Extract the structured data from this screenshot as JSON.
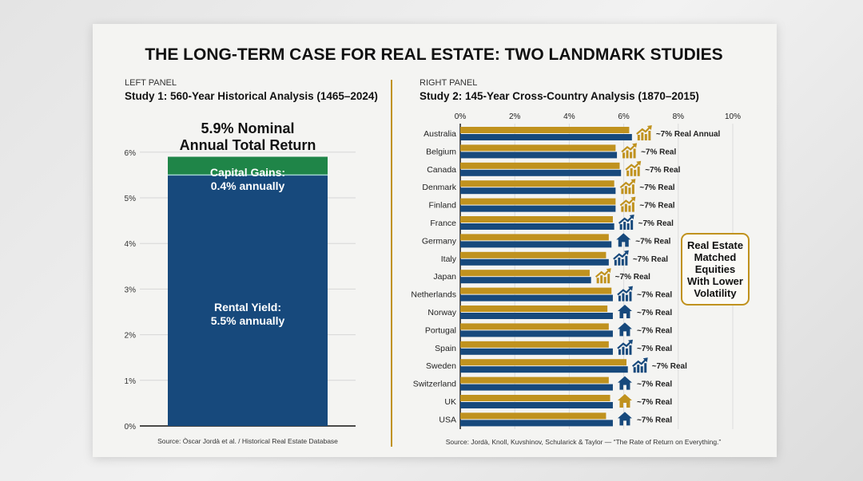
{
  "title": "THE LONG-TERM CASE FOR REAL ESTATE: TWO LANDMARK STUDIES",
  "colors": {
    "gold": "#c0921e",
    "blue": "#17497c",
    "green": "#1f8548",
    "card": "#f4f4f2"
  },
  "chart_data": [
    {
      "type": "bar",
      "stacked": true,
      "panel_label": "LEFT PANEL",
      "subtitle": "Study 1: 560-Year Historical Analysis (1465–2024)",
      "title_line1": "5.9% Nominal",
      "title_line2": "Annual Total Return",
      "yticks": [
        "0%",
        "1%",
        "2%",
        "3%",
        "4%",
        "5%",
        "6%"
      ],
      "ylim": [
        0,
        6
      ],
      "grid": true,
      "segments": [
        {
          "name": "Rental Yield",
          "value": 5.5,
          "label_line1": "Rental Yield:",
          "label_line2": "5.5% annually",
          "color": "#17497c"
        },
        {
          "name": "Capital Gains",
          "value": 0.4,
          "label_line1": "Capital Gains:",
          "label_line2": "0.4% annually",
          "color": "#1f8548"
        }
      ],
      "source": "Source: Òscar Jordà et al. / Historical Real Estate Database"
    },
    {
      "type": "bar",
      "orientation": "horizontal",
      "panel_label": "RIGHT PANEL",
      "subtitle": "Study 2: 145-Year Cross-Country Analysis (1870–2015)",
      "xticks": [
        "0%",
        "2%",
        "4%",
        "6%",
        "8%",
        "10%"
      ],
      "xlim": [
        0,
        10
      ],
      "grid": true,
      "categories": [
        "Australia",
        "Belgium",
        "Canada",
        "Denmark",
        "Finland",
        "France",
        "Germany",
        "Italy",
        "Japan",
        "Netherlands",
        "Norway",
        "Portugal",
        "Spain",
        "Sweden",
        "Switzerland",
        "UK",
        "USA"
      ],
      "series": [
        {
          "color": "#c0921e",
          "values": [
            6.2,
            5.7,
            5.85,
            5.65,
            5.7,
            5.6,
            5.45,
            5.35,
            4.75,
            5.55,
            5.4,
            5.45,
            5.45,
            6.1,
            5.45,
            5.5,
            5.35
          ]
        },
        {
          "color": "#17497c",
          "values": [
            6.3,
            5.75,
            5.9,
            5.7,
            5.7,
            5.65,
            5.55,
            5.45,
            4.8,
            5.6,
            5.6,
            5.6,
            5.6,
            6.15,
            5.6,
            5.6,
            5.6
          ]
        }
      ],
      "annotations": [
        "~7% Real Annual",
        "~7% Real",
        "~7% Real",
        "~7% Real",
        "~7% Real",
        "~7% Real",
        "~7% Real",
        "~7% Real",
        "~7% Real",
        "~7% Real",
        "~7% Real",
        "~7% Real",
        "~7% Real",
        "~7% Real",
        "~7% Real",
        "~7% Real",
        "~7% Real"
      ],
      "icons": [
        {
          "name": "growth-chart-icon",
          "color": "#c0921e"
        },
        {
          "name": "growth-chart-icon",
          "color": "#c0921e"
        },
        {
          "name": "growth-chart-icon",
          "color": "#c0921e"
        },
        {
          "name": "growth-chart-icon",
          "color": "#c0921e"
        },
        {
          "name": "growth-chart-icon",
          "color": "#c0921e"
        },
        {
          "name": "growth-chart-icon",
          "color": "#17497c"
        },
        {
          "name": "house-icon",
          "color": "#17497c"
        },
        {
          "name": "growth-chart-icon",
          "color": "#17497c"
        },
        {
          "name": "growth-chart-icon",
          "color": "#c0921e"
        },
        {
          "name": "growth-chart-icon",
          "color": "#17497c"
        },
        {
          "name": "house-icon",
          "color": "#17497c"
        },
        {
          "name": "house-icon",
          "color": "#17497c"
        },
        {
          "name": "growth-chart-icon",
          "color": "#17497c"
        },
        {
          "name": "growth-chart-icon",
          "color": "#17497c"
        },
        {
          "name": "house-icon",
          "color": "#17497c"
        },
        {
          "name": "house-icon",
          "color": "#c0921e"
        },
        {
          "name": "house-icon",
          "color": "#17497c"
        }
      ],
      "callout": [
        "Real Estate",
        "Matched",
        "Equities",
        "With Lower",
        "Volatility"
      ],
      "source": "Source: Jordà, Knoll, Kuvshinov, Schularick & Taylor — “The Rate of Return on Everything.”"
    }
  ]
}
